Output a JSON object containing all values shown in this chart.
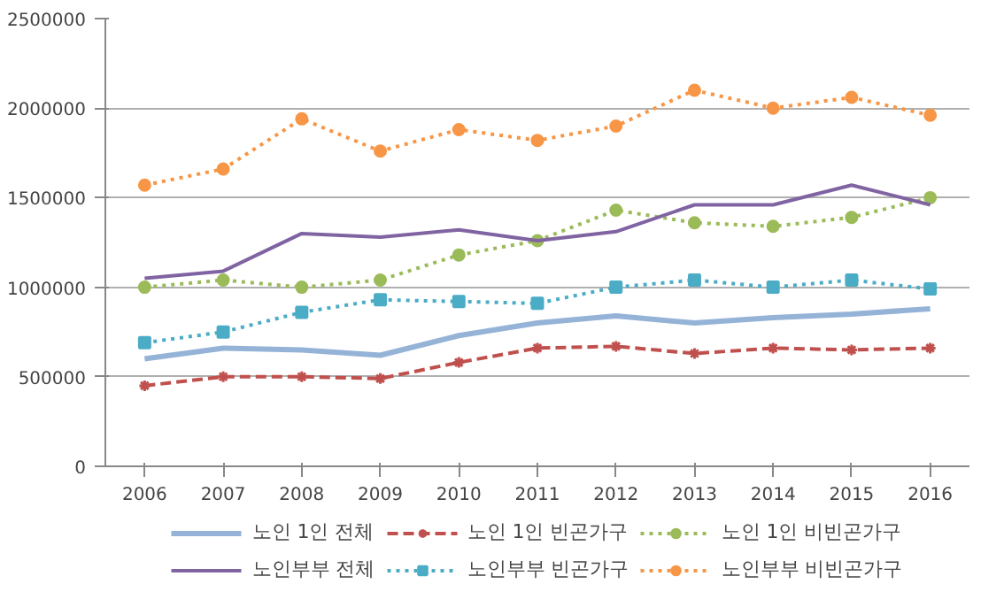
{
  "chart_data": {
    "type": "line",
    "categories": [
      "2006",
      "2007",
      "2008",
      "2009",
      "2010",
      "2011",
      "2012",
      "2013",
      "2014",
      "2015",
      "2016"
    ],
    "ylim": [
      0,
      2500000
    ],
    "yticks": [
      0,
      500000,
      1000000,
      1500000,
      2000000,
      2500000
    ],
    "grid": "y",
    "legend": "bottom",
    "series": [
      {
        "name": "노인 1인 전체",
        "color": "#95b3d7",
        "marker": "none",
        "line_style": "solid",
        "values": [
          600000,
          660000,
          650000,
          620000,
          730000,
          800000,
          840000,
          800000,
          830000,
          850000,
          880000
        ]
      },
      {
        "name": "노인 1인 빈곤가구",
        "color": "#c0504d",
        "marker": "cross",
        "line_style": "dashed",
        "values": [
          450000,
          500000,
          500000,
          490000,
          580000,
          660000,
          670000,
          630000,
          660000,
          650000,
          660000
        ]
      },
      {
        "name": "노인 1인 비빈곤가구",
        "color": "#9bbb59",
        "marker": "circle",
        "line_style": "dotted",
        "values": [
          1000000,
          1040000,
          1000000,
          1040000,
          1180000,
          1260000,
          1430000,
          1360000,
          1340000,
          1390000,
          1500000
        ]
      },
      {
        "name": "노인부부 전체",
        "color": "#8064a2",
        "marker": "none",
        "line_style": "solid",
        "values": [
          1050000,
          1090000,
          1300000,
          1280000,
          1320000,
          1260000,
          1310000,
          1460000,
          1460000,
          1570000,
          1460000
        ]
      },
      {
        "name": "노인부부 빈곤가구",
        "color": "#4bacc6",
        "marker": "square",
        "line_style": "dotted",
        "values": [
          690000,
          750000,
          860000,
          930000,
          920000,
          910000,
          1000000,
          1040000,
          1000000,
          1040000,
          990000
        ]
      },
      {
        "name": "노인부부 비빈곤가구",
        "color": "#f79646",
        "marker": "circle",
        "line_style": "dotted",
        "values": [
          1570000,
          1660000,
          1940000,
          1760000,
          1880000,
          1820000,
          1900000,
          2100000,
          2000000,
          2060000,
          1960000
        ]
      }
    ]
  }
}
